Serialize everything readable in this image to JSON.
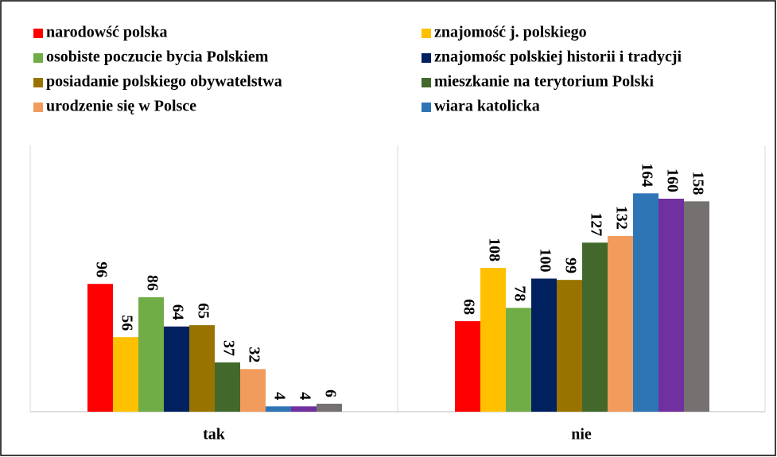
{
  "chart_data": {
    "type": "bar",
    "categories": [
      "tak",
      "nie"
    ],
    "ylim": [
      0,
      200
    ],
    "series": [
      {
        "name": "narodowść polska",
        "color": "#ff0000",
        "values": [
          96,
          68
        ]
      },
      {
        "name": "znajomość j. polskiego",
        "color": "#ffc000",
        "values": [
          56,
          108
        ]
      },
      {
        "name": "osobiste poczucie bycia Polskiem",
        "color": "#70ad47",
        "values": [
          86,
          78
        ]
      },
      {
        "name": "znajomośc polskiej historii i tradycji",
        "color": "#002060",
        "values": [
          64,
          100
        ]
      },
      {
        "name": "posiadanie polskiego obywatelstwa",
        "color": "#997300",
        "values": [
          65,
          99
        ]
      },
      {
        "name": "mieszkanie na terytorium Polski",
        "color": "#43682b",
        "values": [
          37,
          127
        ]
      },
      {
        "name": "urodzenie się w Polsce",
        "color": "#f19c5c",
        "values": [
          32,
          132
        ]
      },
      {
        "name": "wiara katolicka",
        "color": "#2e75b6",
        "values": [
          4,
          164
        ]
      },
      {
        "color": "#7030a0",
        "values": [
          4,
          160
        ]
      },
      {
        "color": "#767171",
        "values": [
          6,
          158
        ]
      }
    ]
  }
}
